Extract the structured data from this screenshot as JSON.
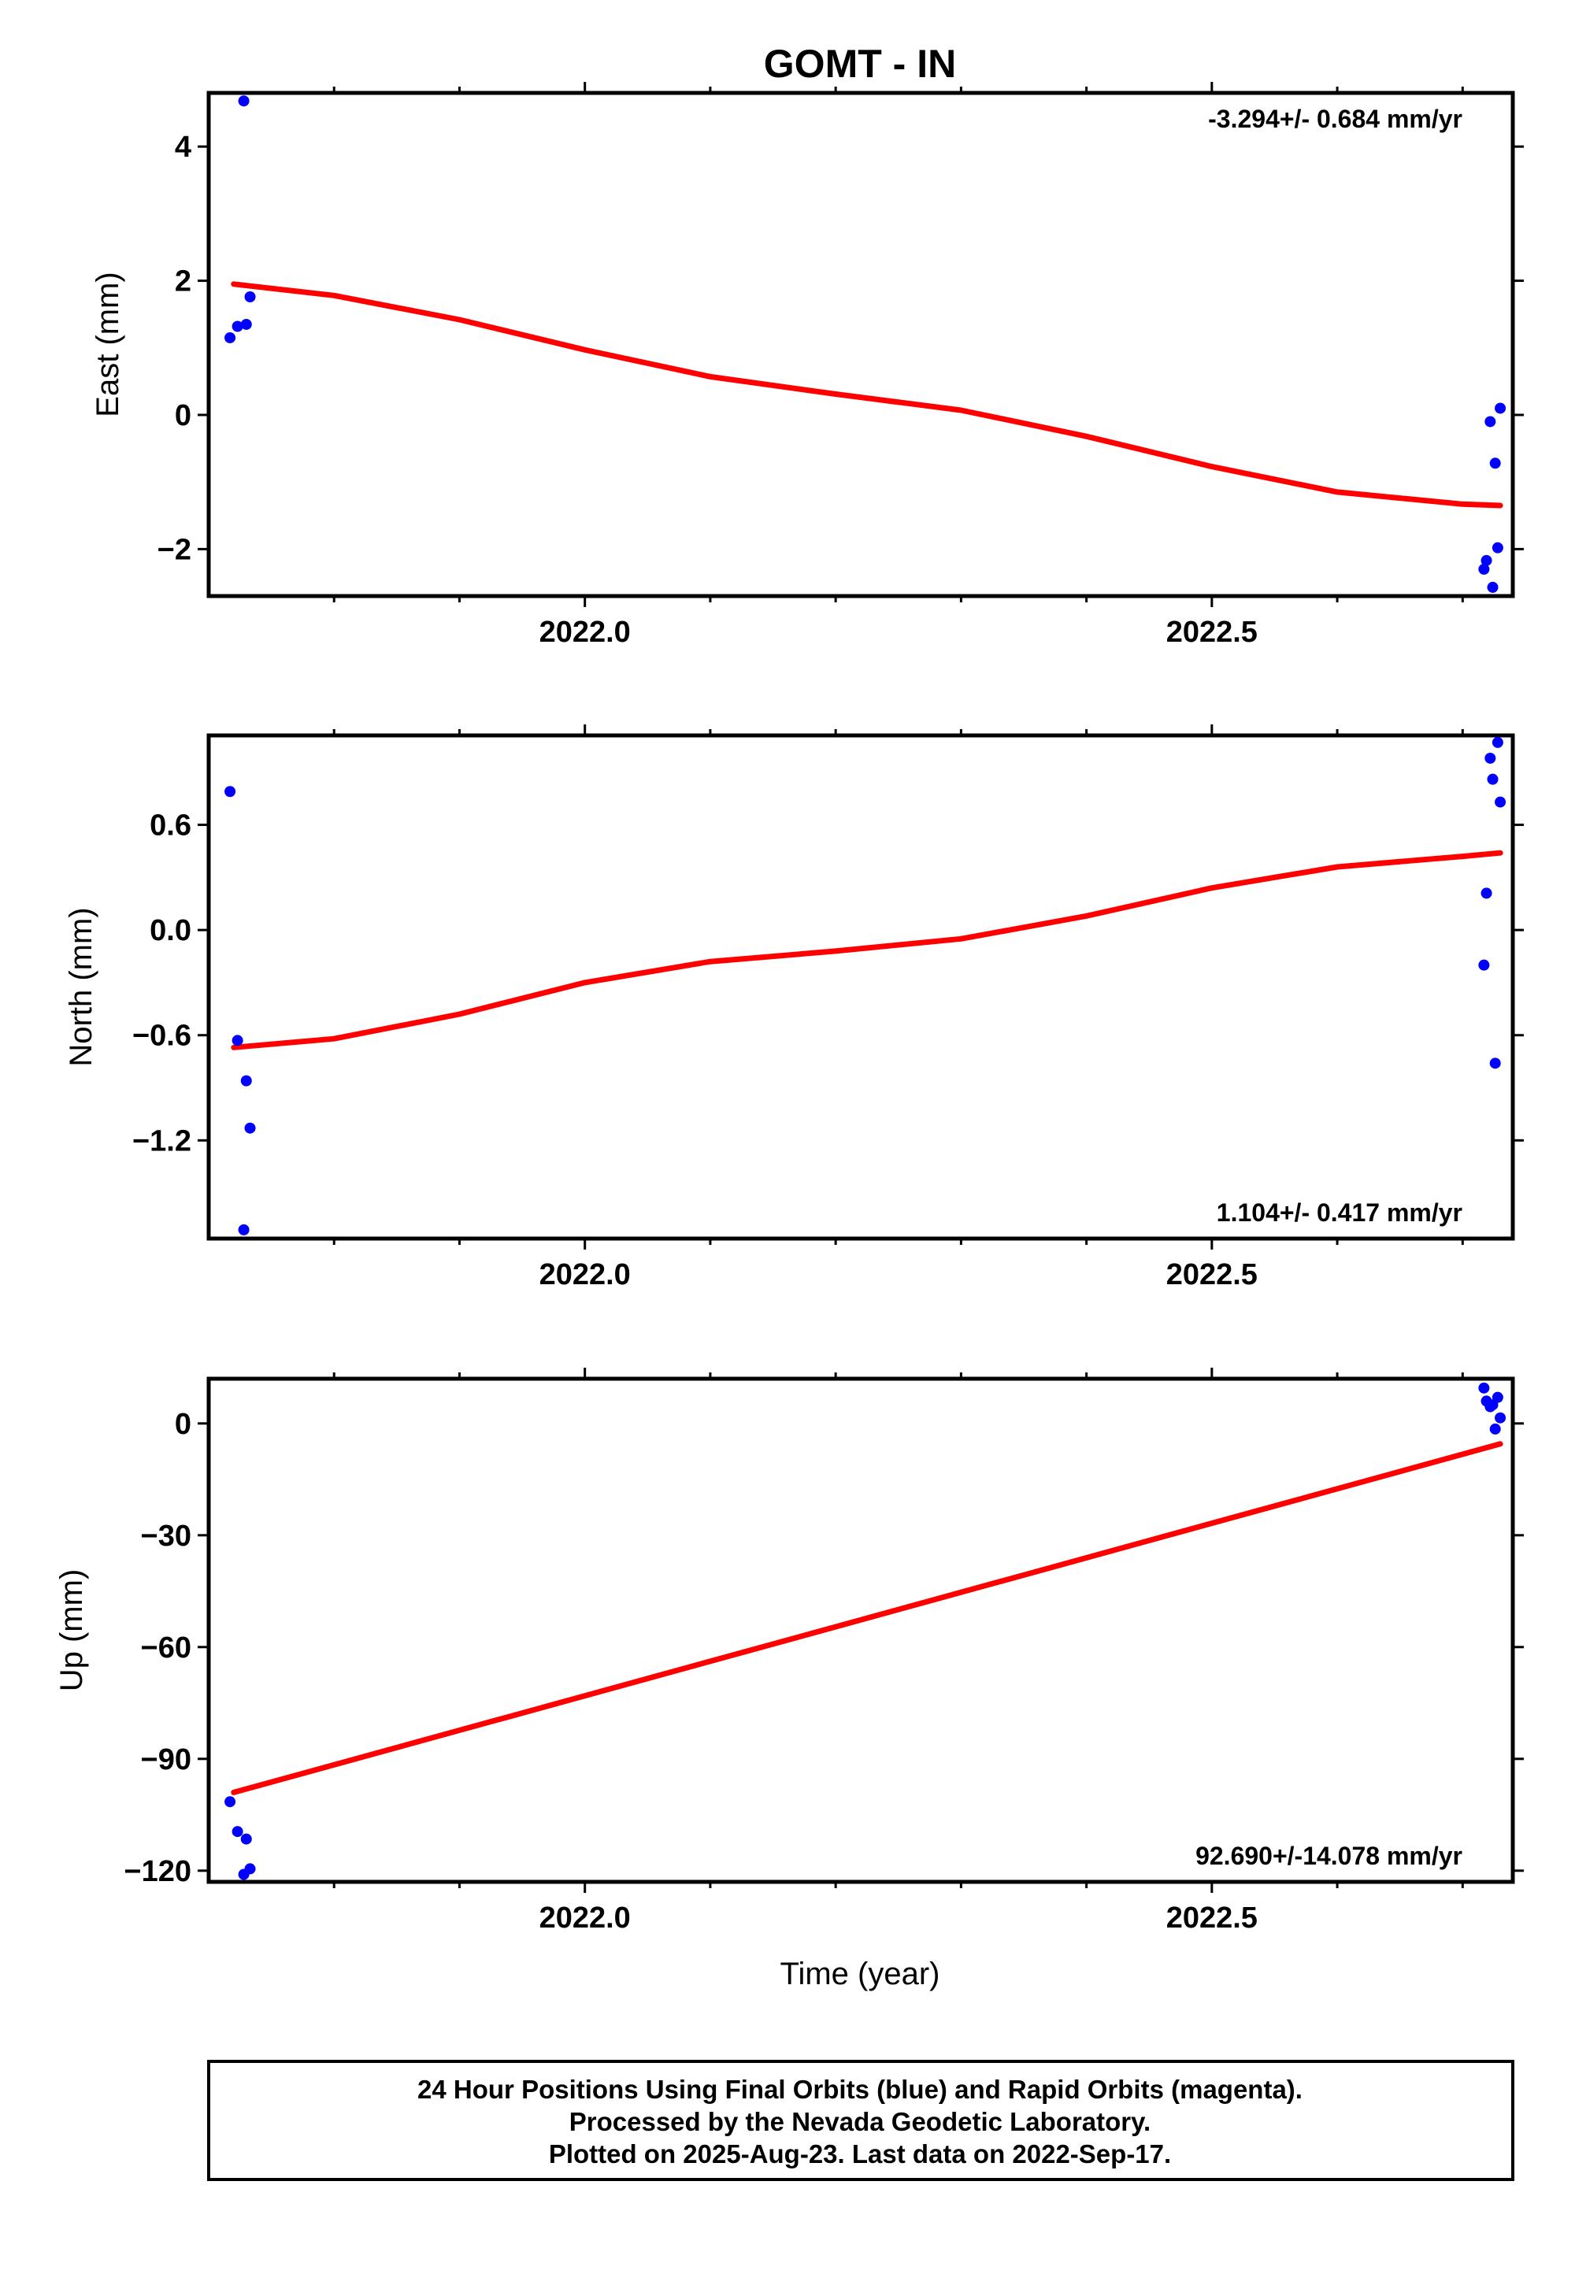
{
  "title": "GOMT - IN",
  "x_axis_label": "Time (year)",
  "colors": {
    "points": "#0000ff",
    "fit": "#ff0000",
    "frame": "#000000"
  },
  "chart_data": [
    {
      "type": "scatter",
      "panel": "east",
      "ylabel": "East (mm)",
      "rate_label": "-3.294+/- 0.684 mm/yr",
      "rate_position": "top-right",
      "xlim": [
        2021.7,
        2022.74
      ],
      "ylim": [
        -2.7,
        4.8
      ],
      "xticks": [
        2022.0,
        2022.5
      ],
      "xtick_labels": [
        "2022.0",
        "2022.5"
      ],
      "yticks": [
        -2,
        0,
        2,
        4
      ],
      "ytick_labels": [
        "−2",
        "0",
        "2",
        "4"
      ],
      "grid": false,
      "series": [
        {
          "type": "scatter",
          "color": "#0000ff",
          "x": [
            2021.717,
            2021.723,
            2021.728,
            2021.73,
            2021.733,
            2022.717,
            2022.719,
            2022.722,
            2022.724,
            2022.726,
            2022.728,
            2022.73
          ],
          "y": [
            1.15,
            1.32,
            4.68,
            1.35,
            1.76,
            -2.3,
            -2.17,
            -0.1,
            -2.57,
            -0.72,
            -1.98,
            0.1
          ]
        },
        {
          "type": "line",
          "color": "#ff0000",
          "x": [
            2021.72,
            2021.8,
            2021.9,
            2022.0,
            2022.1,
            2022.2,
            2022.3,
            2022.4,
            2022.5,
            2022.6,
            2022.7,
            2022.73
          ],
          "y": [
            1.95,
            1.78,
            1.42,
            0.97,
            0.57,
            0.31,
            0.07,
            -0.32,
            -0.77,
            -1.15,
            -1.33,
            -1.35
          ]
        }
      ]
    },
    {
      "type": "scatter",
      "panel": "north",
      "ylabel": "North (mm)",
      "rate_label": "1.104+/- 0.417 mm/yr",
      "rate_position": "bottom-right",
      "xlim": [
        2021.7,
        2022.74
      ],
      "ylim": [
        -1.76,
        1.11
      ],
      "xticks": [
        2022.0,
        2022.5
      ],
      "xtick_labels": [
        "2022.0",
        "2022.5"
      ],
      "yticks": [
        -1.2,
        -0.6,
        0.0,
        0.6
      ],
      "ytick_labels": [
        "−1.2",
        "−0.6",
        "0.0",
        "0.6"
      ],
      "grid": false,
      "series": [
        {
          "type": "scatter",
          "color": "#0000ff",
          "x": [
            2021.717,
            2021.723,
            2021.728,
            2021.73,
            2021.733,
            2022.717,
            2022.719,
            2022.722,
            2022.724,
            2022.726,
            2022.728,
            2022.73
          ],
          "y": [
            0.79,
            -0.63,
            -1.71,
            -0.86,
            -1.13,
            -0.2,
            0.21,
            0.98,
            0.86,
            -0.76,
            1.07,
            0.73
          ]
        },
        {
          "type": "line",
          "color": "#ff0000",
          "x": [
            2021.72,
            2021.8,
            2021.9,
            2022.0,
            2022.1,
            2022.2,
            2022.3,
            2022.4,
            2022.5,
            2022.6,
            2022.7,
            2022.73
          ],
          "y": [
            -0.67,
            -0.62,
            -0.48,
            -0.3,
            -0.18,
            -0.12,
            -0.05,
            0.08,
            0.24,
            0.36,
            0.42,
            0.44
          ]
        }
      ]
    },
    {
      "type": "scatter",
      "panel": "up",
      "ylabel": "Up (mm)",
      "rate_label": "92.690+/-14.078 mm/yr",
      "rate_position": "bottom-right",
      "xlim": [
        2021.7,
        2022.74
      ],
      "ylim": [
        -123,
        12
      ],
      "xticks": [
        2022.0,
        2022.5
      ],
      "xtick_labels": [
        "2022.0",
        "2022.5"
      ],
      "yticks": [
        -120,
        -90,
        -60,
        -30,
        0
      ],
      "ytick_labels": [
        "−120",
        "−90",
        "−60",
        "−30",
        "0"
      ],
      "grid": false,
      "series": [
        {
          "type": "scatter",
          "color": "#0000ff",
          "x": [
            2021.717,
            2021.723,
            2021.728,
            2021.73,
            2021.733,
            2022.717,
            2022.719,
            2022.722,
            2022.724,
            2022.726,
            2022.728,
            2022.73
          ],
          "y": [
            -101.5,
            -109.5,
            -121.0,
            -111.5,
            -119.5,
            9.5,
            6.0,
            4.5,
            5.0,
            -1.5,
            7.0,
            1.5
          ]
        },
        {
          "type": "line",
          "color": "#ff0000",
          "x": [
            2021.72,
            2022.73
          ],
          "y": [
            -99.0,
            -5.5
          ]
        }
      ]
    }
  ],
  "footer": {
    "line1": "24 Hour Positions Using Final Orbits (blue) and Rapid Orbits (magenta).",
    "line2": "Processed by the Nevada Geodetic Laboratory.",
    "line3": "Plotted on 2025-Aug-23. Last data on 2022-Sep-17."
  }
}
